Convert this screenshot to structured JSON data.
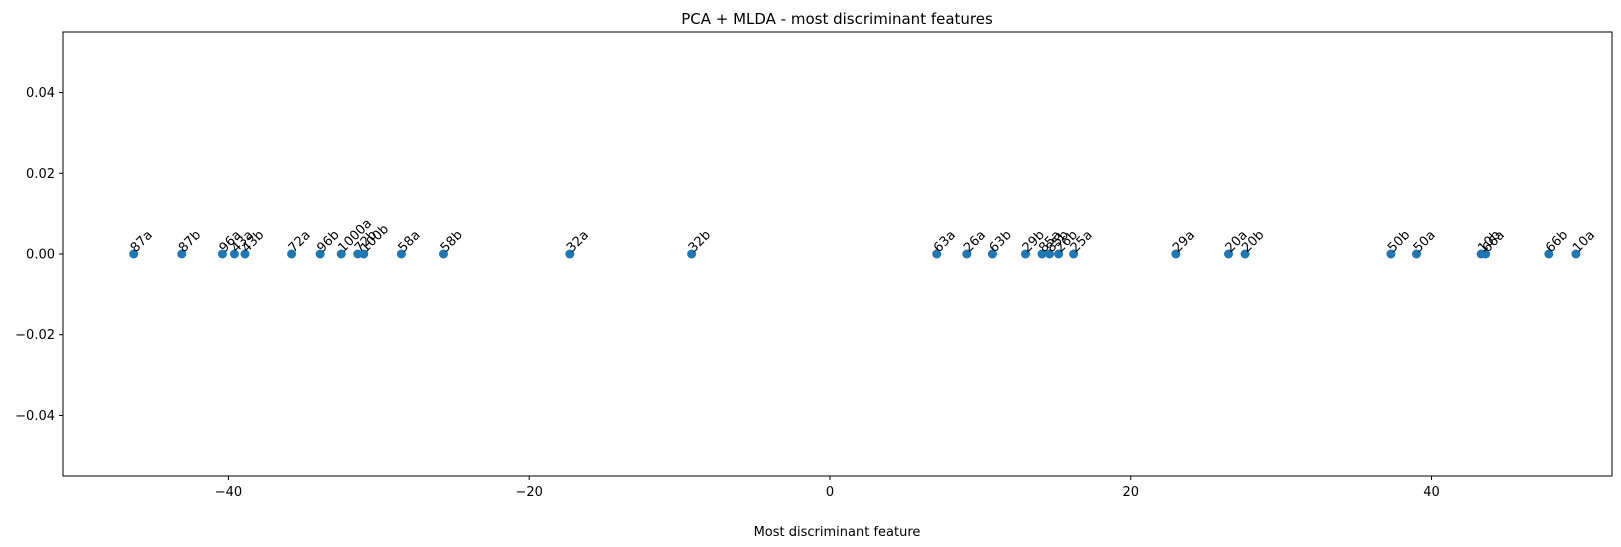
{
  "chart_data": {
    "type": "scatter",
    "title": "PCA + MLDA - most discriminant features",
    "xlabel": "Most discriminant feature",
    "ylabel": "",
    "xlim": [
      -51.0,
      52.0
    ],
    "ylim": [
      -0.055,
      0.055
    ],
    "x_ticks": [
      -40,
      -20,
      0,
      20,
      40
    ],
    "x_tick_labels": [
      "−40",
      "−20",
      "0",
      "20",
      "40"
    ],
    "y_ticks": [
      0.04,
      0.02,
      0.0,
      -0.02,
      -0.04
    ],
    "y_tick_labels": [
      "0.04",
      "0.02",
      "0.00",
      "−0.02",
      "−0.04"
    ],
    "grid": false,
    "marker_color": "#1f77b4",
    "points": [
      {
        "label": "87a",
        "x": -46.3,
        "y": 0
      },
      {
        "label": "87b",
        "x": -43.1,
        "y": 0
      },
      {
        "label": "96a",
        "x": -40.4,
        "y": 0
      },
      {
        "label": "43a",
        "x": -39.6,
        "y": 0
      },
      {
        "label": "43b",
        "x": -38.9,
        "y": 0
      },
      {
        "label": "72a",
        "x": -35.8,
        "y": 0
      },
      {
        "label": "96b",
        "x": -33.9,
        "y": 0
      },
      {
        "label": "1000a",
        "x": -32.5,
        "y": 0
      },
      {
        "label": "72b",
        "x": -31.4,
        "y": 0
      },
      {
        "label": "100b",
        "x": -31.0,
        "y": 0
      },
      {
        "label": "58a",
        "x": -28.5,
        "y": 0
      },
      {
        "label": "58b",
        "x": -25.7,
        "y": 0
      },
      {
        "label": "32a",
        "x": -17.3,
        "y": 0
      },
      {
        "label": "32b",
        "x": -9.2,
        "y": 0
      },
      {
        "label": "63a",
        "x": 7.1,
        "y": 0
      },
      {
        "label": "26a",
        "x": 9.1,
        "y": 0
      },
      {
        "label": "63b",
        "x": 10.8,
        "y": 0
      },
      {
        "label": "29b",
        "x": 13.0,
        "y": 0
      },
      {
        "label": "85a",
        "x": 14.1,
        "y": 0
      },
      {
        "label": "85b",
        "x": 14.6,
        "y": 0
      },
      {
        "label": "26b",
        "x": 15.2,
        "y": 0
      },
      {
        "label": "25a",
        "x": 16.2,
        "y": 0
      },
      {
        "label": "29a",
        "x": 23.0,
        "y": 0
      },
      {
        "label": "20a",
        "x": 26.5,
        "y": 0
      },
      {
        "label": "20b",
        "x": 27.6,
        "y": 0
      },
      {
        "label": "50b",
        "x": 37.3,
        "y": 0
      },
      {
        "label": "50a",
        "x": 39.0,
        "y": 0
      },
      {
        "label": "10b",
        "x": 43.3,
        "y": 0
      },
      {
        "label": "66a",
        "x": 43.6,
        "y": 0
      },
      {
        "label": "66b",
        "x": 47.8,
        "y": 0
      },
      {
        "label": "10a",
        "x": 49.6,
        "y": 0
      }
    ]
  }
}
